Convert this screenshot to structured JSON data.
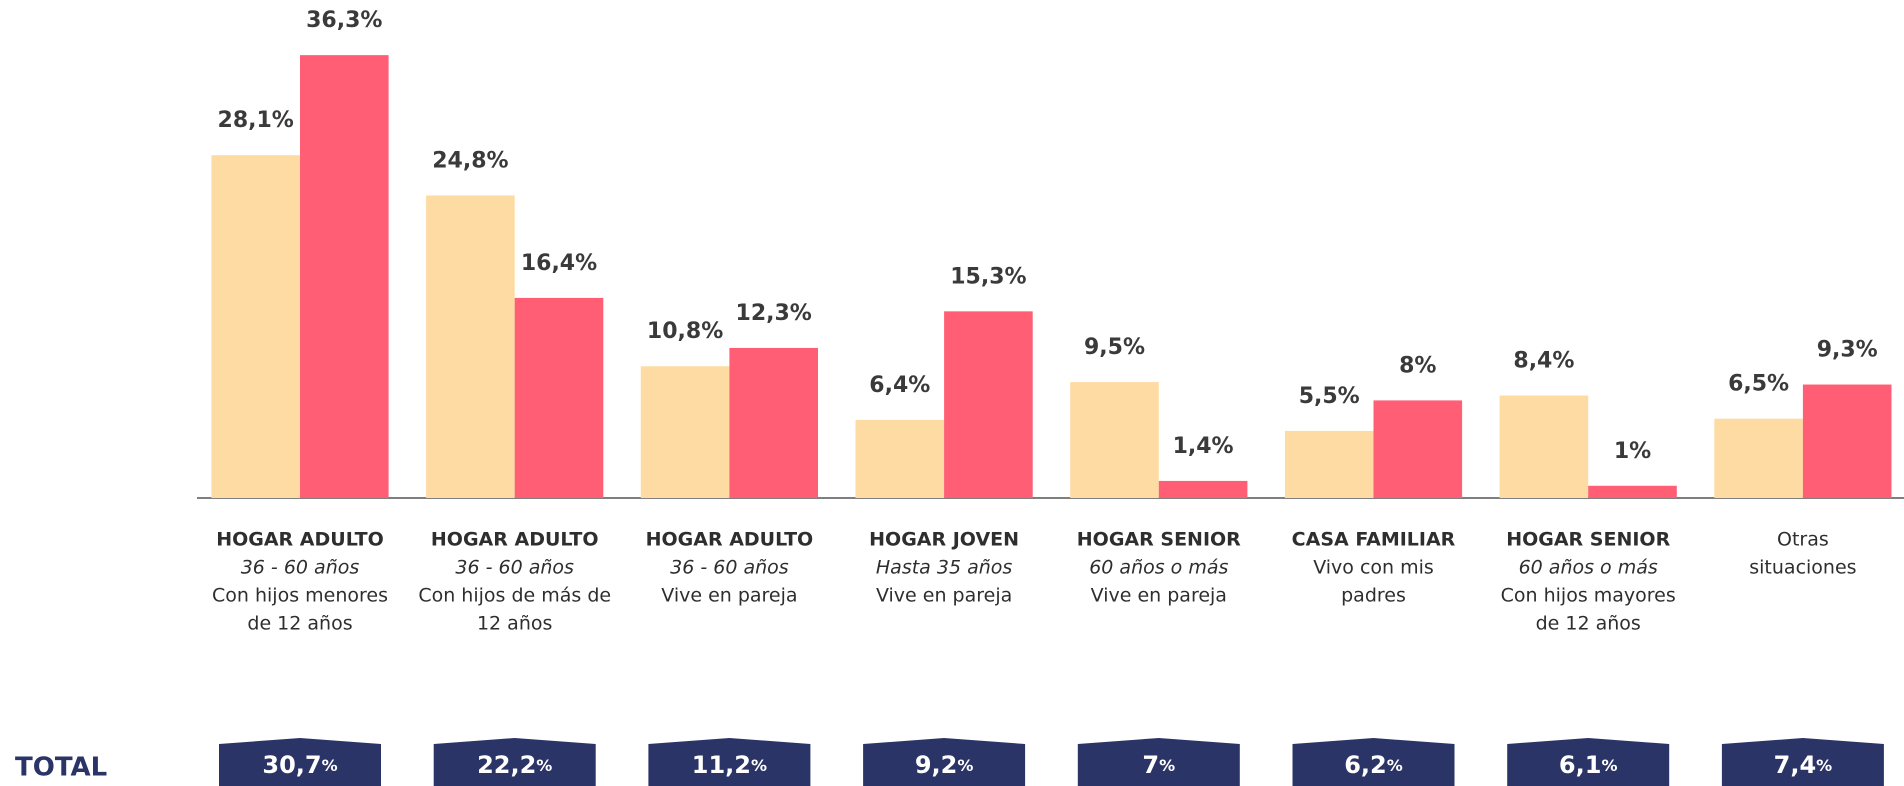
{
  "chart_data": {
    "type": "bar",
    "categories": [
      {
        "title": "HOGAR ADULTO",
        "subtitle": "36 - 60 años",
        "description": [
          "Con hijos menores",
          "de 12 años"
        ]
      },
      {
        "title": "HOGAR ADULTO",
        "subtitle": "36 - 60 años",
        "description": [
          "Con hijos de más de",
          "12 años"
        ]
      },
      {
        "title": "HOGAR ADULTO",
        "subtitle": "36 - 60 años",
        "description": [
          "Vive en pareja"
        ]
      },
      {
        "title": "HOGAR JOVEN",
        "subtitle": "Hasta 35 años",
        "description": [
          "Vive en pareja"
        ]
      },
      {
        "title": "HOGAR SENIOR",
        "subtitle": "60 años o más",
        "description": [
          "Vive en pareja"
        ]
      },
      {
        "title": "CASA FAMILIAR",
        "description": [
          "Vivo con mis",
          "padres"
        ]
      },
      {
        "title": "HOGAR SENIOR",
        "subtitle": "60 años o más",
        "description": [
          "Con hijos mayores",
          "de 12 años"
        ]
      },
      {
        "description": [
          "Otras",
          "situaciones"
        ]
      }
    ],
    "series": [
      {
        "color": "#fddba3",
        "values": [
          28.1,
          24.8,
          10.8,
          6.4,
          9.5,
          5.5,
          8.4,
          6.5
        ],
        "value_labels": [
          "28,1%",
          "24,8%",
          "10,8%",
          "6,4%",
          "9,5%",
          "5,5%",
          "8,4%",
          "6,5%"
        ]
      },
      {
        "color": "#ff5e74",
        "values": [
          36.3,
          16.4,
          12.3,
          15.3,
          1.4,
          8,
          1,
          9.3
        ],
        "value_labels": [
          "36,3%",
          "16,4%",
          "12,3%",
          "15,3%",
          "1,4%",
          "8%",
          "1%",
          "9,3%"
        ]
      }
    ],
    "ylim": [
      0,
      40
    ],
    "totals": {
      "label": "TOTAL",
      "color": "#2b3467",
      "unit": "%",
      "values": [
        30.7,
        22.2,
        11.2,
        9.2,
        7,
        6.2,
        6.1,
        7.4
      ],
      "value_labels": [
        "30,7",
        "22,2",
        "11,2",
        "9,2",
        "7",
        "6,2",
        "6,1",
        "7,4"
      ]
    }
  }
}
